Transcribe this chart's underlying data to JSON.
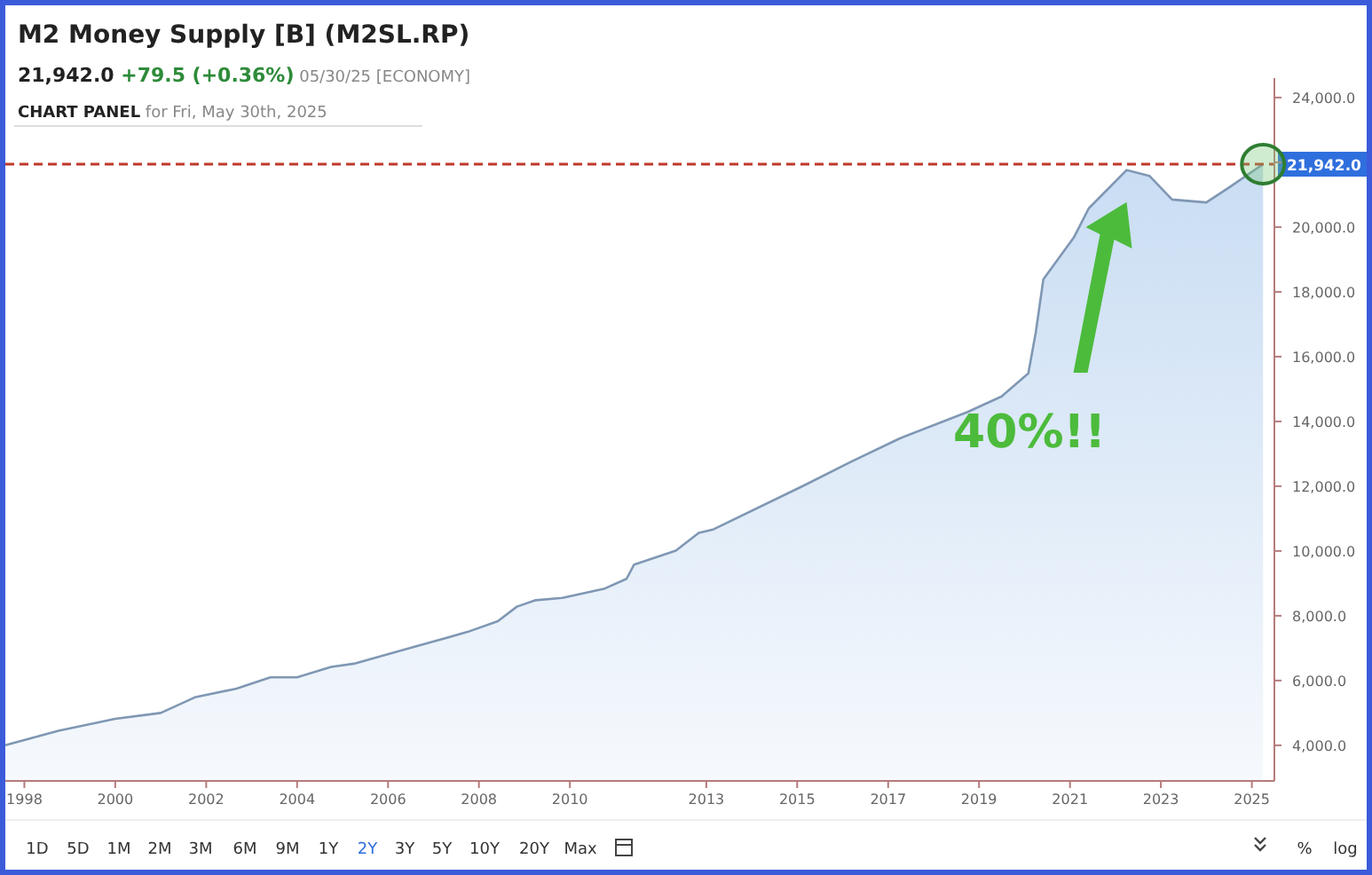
{
  "chart_data": {
    "type": "area",
    "title": "M2 Money Supply [B] (M2SL.RP)",
    "subtitle": "21,942.0 +79.5 (+0.36%) 05/30/25 [ECONOMY]",
    "x": [
      "1997-08",
      "1998-10",
      "2000-01",
      "2001-01",
      "2001-10",
      "2002-09",
      "2003-06",
      "2004-01",
      "2004-10",
      "2005-04",
      "2006-07",
      "2007-10",
      "2008-06",
      "2008-11",
      "2009-04",
      "2009-11",
      "2010-10",
      "2011-04",
      "2011-06",
      "2012-05",
      "2012-11",
      "2013-03",
      "2015-03",
      "2016-03",
      "2017-04",
      "2018-10",
      "2019-07",
      "2020-02",
      "2020-04",
      "2020-06",
      "2021-02",
      "2021-06",
      "2022-04",
      "2022-10",
      "2023-04",
      "2024-01",
      "2024-07",
      "2025-04"
    ],
    "series": [
      {
        "color": "#7f97b3",
        "values": [
          4000,
          4450,
          4820,
          5000,
          5480,
          5750,
          6100,
          6100,
          6420,
          6520,
          7010,
          7500,
          7830,
          8280,
          8480,
          8550,
          8830,
          9140,
          9580,
          10010,
          10560,
          10670,
          12030,
          12740,
          13470,
          14290,
          14770,
          15480,
          16750,
          18390,
          19680,
          20580,
          21760,
          21580,
          20850,
          20760,
          21220,
          21942
        ]
      }
    ],
    "xlim": [
      "1997-08",
      "2025-07"
    ],
    "ylim": [
      2900,
      24600
    ],
    "xticks": [
      {
        "value": "1998",
        "label": "1998"
      },
      {
        "value": "2000",
        "label": "2000"
      },
      {
        "value": "2002",
        "label": "2002"
      },
      {
        "value": "2004",
        "label": "2004"
      },
      {
        "value": "2006",
        "label": "2006"
      },
      {
        "value": "2008",
        "label": "2008"
      },
      {
        "value": "2010",
        "label": "2010"
      },
      {
        "value": "2013",
        "label": "2013"
      },
      {
        "value": "2015",
        "label": "2015"
      },
      {
        "value": "2017",
        "label": "2017"
      },
      {
        "value": "2019",
        "label": "2019"
      },
      {
        "value": "2021",
        "label": "2021"
      },
      {
        "value": "2023",
        "label": "2023"
      },
      {
        "value": "2025",
        "label": "2025"
      }
    ],
    "yticks": [
      {
        "value": 4000,
        "label": "4,000.0"
      },
      {
        "value": 6000,
        "label": "6,000.0"
      },
      {
        "value": 8000,
        "label": "8,000.0"
      },
      {
        "value": 10000,
        "label": "10,000.0"
      },
      {
        "value": 12000,
        "label": "12,000.0"
      },
      {
        "value": 14000,
        "label": "14,000.0"
      },
      {
        "value": 16000,
        "label": "16,000.0"
      },
      {
        "value": 18000,
        "label": "18,000.0"
      },
      {
        "value": 20000,
        "label": "20,000.0"
      },
      {
        "value": 22000,
        "label": null
      },
      {
        "value": 24000,
        "label": "24,000.0"
      }
    ],
    "ref_lines": [
      {
        "axis": "y",
        "value": 21942,
        "label": "21,942.0",
        "color": "#c0392b",
        "line_style": "dashed"
      }
    ],
    "annotations": [
      "CHART PANEL for Fri, May 30th, 2025",
      "40%!!",
      "1D",
      "5D",
      "1M",
      "2M",
      "3M",
      "6M",
      "9M",
      "1Y",
      "2Y",
      "3Y",
      "5Y",
      "10Y",
      "20Y",
      "Max",
      "%",
      "log"
    ],
    "grid": false
  }
}
